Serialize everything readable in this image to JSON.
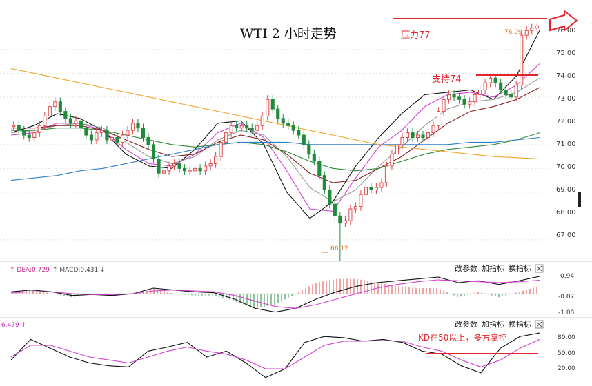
{
  "title": "WTI 2 小时走势",
  "annotations": {
    "resistance": "压力77",
    "support": "支持74",
    "kd_note": "KD在50以上，多方掌控",
    "high_price": "76.09",
    "low_price": "66.12"
  },
  "price_axis": {
    "ticks": [
      "76.00",
      "75.00",
      "74.00",
      "73.00",
      "72.00",
      "71.00",
      "70.00",
      "69.00",
      "68.00",
      "67.00"
    ],
    "ylim": [
      66.3,
      76.3
    ]
  },
  "macd_panel": {
    "legend": {
      "dea": "DEA:0.729",
      "macd": "MACD:0.431"
    },
    "ticks": [
      "0.94",
      "-0.07",
      "-1.08"
    ],
    "ylim": [
      -1.2,
      1.05
    ]
  },
  "kd_panel": {
    "legend_value": "6.479",
    "ticks": [
      "80.00",
      "50.00",
      "20.00"
    ],
    "ylim": [
      12,
      92
    ]
  },
  "panel_menu": {
    "modify_params": "改参数",
    "add_indicator": "加指标",
    "switch_indicator": "换指标"
  },
  "colors": {
    "up": "#e04a4a",
    "down": "#1f8c3b",
    "annotation": "#e3242b",
    "ma_black": "#111111",
    "ma_magenta": "#d43fd4",
    "ma_gray": "#9a9a9a",
    "ma_darkred": "#8b1d1d",
    "ma_green": "#2e8b3a",
    "ma_blue": "#2f7fc8",
    "ma_orange": "#f0a830"
  },
  "chart_data": {
    "type": "candlestick",
    "title": "WTI 2 小时走势",
    "timeframe": "2 hours",
    "closes": [
      71.8,
      71.6,
      71.4,
      71.3,
      71.5,
      71.8,
      72.2,
      72.6,
      72.8,
      72.4,
      72.1,
      71.9,
      72.0,
      71.7,
      71.4,
      71.2,
      71.5,
      71.6,
      71.2,
      71.3,
      71.1,
      71.4,
      71.6,
      71.9,
      71.7,
      71.3,
      71.0,
      70.4,
      69.8,
      69.9,
      70.1,
      70.2,
      70.0,
      69.9,
      69.9,
      70.0,
      69.9,
      70.1,
      70.2,
      70.5,
      71.1,
      71.5,
      71.8,
      71.7,
      71.8,
      71.7,
      71.6,
      71.8,
      72.2,
      72.9,
      72.5,
      72.1,
      71.9,
      71.8,
      71.6,
      71.4,
      71.0,
      70.6,
      70.3,
      69.7,
      69.1,
      68.5,
      68.0,
      67.7,
      67.8,
      68.3,
      68.4,
      68.9,
      69.2,
      69.1,
      69.2,
      69.4,
      70.1,
      70.6,
      71.0,
      71.3,
      71.5,
      71.3,
      71.4,
      71.3,
      71.5,
      71.8,
      72.4,
      72.9,
      73.1,
      73.0,
      72.9,
      72.7,
      72.8,
      73.1,
      73.3,
      73.6,
      73.8,
      73.6,
      73.3,
      73.1,
      73.0,
      73.5,
      75.6,
      75.8,
      75.9,
      76.0
    ],
    "high": 76.09,
    "low": 66.12,
    "moving_averages": [
      {
        "color": "black",
        "values": [
          71.5,
          71.8,
          72.3,
          72.1,
          71.6,
          70.6,
          70.1,
          70.0,
          70.8,
          71.9,
          72.0,
          71.0,
          69.0,
          67.9,
          68.6,
          70.1,
          71.3,
          72.3,
          73.1,
          73.2,
          73.3,
          72.9,
          73.9,
          75.8
        ]
      },
      {
        "color": "magenta",
        "values": [
          71.4,
          71.5,
          71.9,
          71.9,
          71.6,
          70.8,
          70.2,
          70.1,
          70.6,
          71.5,
          71.9,
          71.3,
          69.9,
          68.3,
          68.2,
          69.6,
          70.9,
          71.6,
          72.6,
          73.1,
          73.2,
          73.0,
          73.5,
          74.4
        ]
      },
      {
        "color": "gray",
        "values": [
          71.5,
          71.6,
          71.8,
          71.9,
          71.7,
          71.1,
          70.5,
          70.2,
          70.5,
          71.2,
          71.6,
          71.4,
          70.5,
          69.2,
          68.6,
          69.1,
          70.1,
          70.9,
          71.8,
          72.5,
          72.8,
          72.9,
          73.2,
          73.8
        ]
      },
      {
        "color": "darkred",
        "values": [
          71.7,
          71.7,
          71.8,
          71.8,
          71.6,
          71.2,
          70.8,
          70.5,
          70.6,
          71.1,
          71.4,
          71.2,
          70.6,
          69.8,
          69.4,
          69.5,
          70.0,
          70.5,
          71.2,
          71.9,
          72.4,
          72.6,
          72.9,
          73.4
        ]
      },
      {
        "color": "green",
        "values": [
          71.6,
          71.6,
          71.7,
          71.7,
          71.6,
          71.4,
          71.2,
          71.0,
          70.9,
          71.0,
          71.1,
          71.0,
          70.7,
          70.3,
          70.0,
          69.9,
          70.0,
          70.3,
          70.6,
          70.8,
          70.9,
          71.0,
          71.2,
          71.5
        ]
      },
      {
        "color": "blue",
        "values": [
          69.5,
          69.6,
          69.7,
          69.9,
          70.0,
          70.2,
          70.4,
          70.6,
          70.8,
          71.0,
          71.1,
          71.1,
          71.1,
          71.0,
          71.0,
          71.0,
          71.0,
          71.0,
          71.0,
          71.0,
          71.1,
          71.1,
          71.2,
          71.3
        ]
      },
      {
        "color": "orange",
        "values": [
          74.2,
          74.0,
          73.8,
          73.6,
          73.4,
          73.2,
          73.0,
          72.8,
          72.6,
          72.4,
          72.2,
          72.0,
          71.8,
          71.6,
          71.4,
          71.2,
          71.0,
          70.9,
          70.8,
          70.7,
          70.6,
          70.5,
          70.45,
          70.4
        ]
      }
    ],
    "resistance_level": 77,
    "support_level": 74,
    "macd": {
      "dif": [
        0.1,
        0.2,
        0.1,
        -0.1,
        -0.05,
        -0.1,
        0.0,
        0.3,
        0.2,
        0.1,
        0.05,
        -0.3,
        -0.8,
        -1.0,
        -0.8,
        -0.3,
        0.1,
        0.4,
        0.6,
        0.7,
        0.8,
        0.9,
        0.6,
        0.7,
        0.5,
        0.7,
        0.94
      ],
      "dea": [
        0.05,
        0.1,
        0.1,
        0.0,
        -0.05,
        -0.05,
        0.0,
        0.15,
        0.2,
        0.15,
        0.1,
        -0.1,
        -0.4,
        -0.7,
        -0.8,
        -0.6,
        -0.3,
        0.0,
        0.3,
        0.5,
        0.65,
        0.75,
        0.7,
        0.65,
        0.6,
        0.65,
        0.73
      ]
    },
    "kd": {
      "k": [
        40,
        75,
        60,
        45,
        35,
        30,
        28,
        55,
        62,
        70,
        45,
        55,
        35,
        10,
        25,
        70,
        80,
        78,
        72,
        75,
        70,
        55,
        50,
        30,
        18,
        60,
        80,
        86
      ],
      "d": [
        45,
        65,
        65,
        55,
        45,
        40,
        35,
        45,
        55,
        62,
        55,
        50,
        40,
        25,
        25,
        45,
        65,
        72,
        72,
        73,
        72,
        62,
        55,
        40,
        28,
        40,
        60,
        75
      ]
    }
  }
}
